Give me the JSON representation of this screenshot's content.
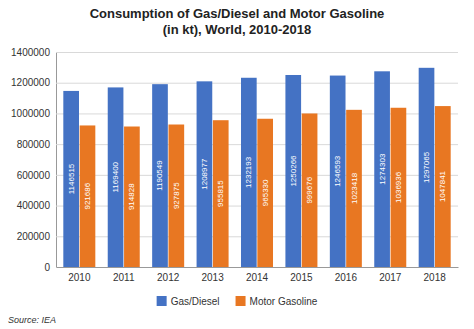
{
  "chart_data": {
    "type": "bar",
    "title": "Consumption of Gas/Diesel and Motor Gasoline\n(in kt), World, 2010-2018",
    "categories": [
      "2010",
      "2011",
      "2012",
      "2013",
      "2014",
      "2015",
      "2016",
      "2017",
      "2018"
    ],
    "series": [
      {
        "name": "Gas/Diesel",
        "color": "#4472C4",
        "values": [
          1146515,
          1169400,
          1190549,
          1208977,
          1232193,
          1250266,
          1246593,
          1274303,
          1297065
        ]
      },
      {
        "name": "Motor Gasoline",
        "color": "#E87722",
        "values": [
          921686,
          914828,
          927875,
          955815,
          965330,
          999676,
          1023418,
          1036936,
          1047841
        ]
      }
    ],
    "ylim": [
      0,
      1400000
    ],
    "yticks": [
      0,
      200000,
      400000,
      600000,
      800000,
      1000000,
      1200000,
      1400000
    ],
    "grid": true,
    "legend": "bottom",
    "data_labels": true,
    "annotations": [
      "Source: IEA"
    ]
  }
}
